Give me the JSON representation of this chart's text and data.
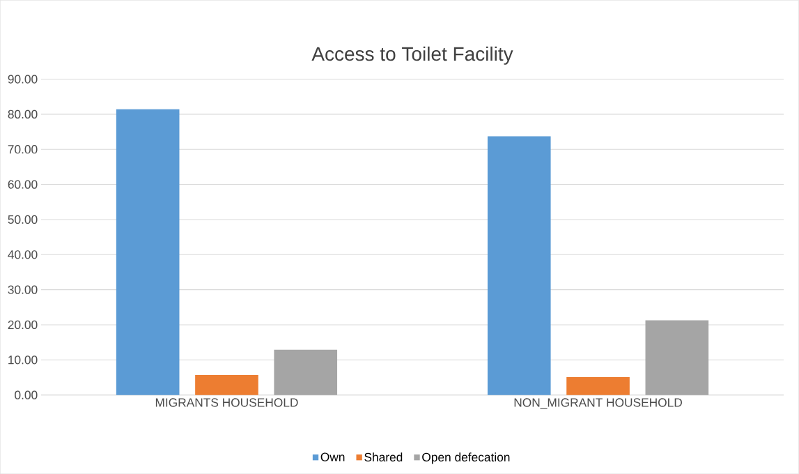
{
  "chart_data": {
    "type": "bar",
    "title": "Access to Toilet Facility",
    "categories": [
      "MIGRANTS HOUSEHOLD",
      "NON_MIGRANT HOUSEHOLD"
    ],
    "series": [
      {
        "name": "Own",
        "color": "#5b9bd5",
        "values": [
          81.4,
          73.7
        ]
      },
      {
        "name": "Shared",
        "color": "#ed7d31",
        "values": [
          5.7,
          5.1
        ]
      },
      {
        "name": "Open defecation",
        "color": "#a5a5a5",
        "values": [
          12.9,
          21.3
        ]
      }
    ],
    "ylim": [
      0,
      90
    ],
    "yticks": [
      {
        "value": 0,
        "label": "0.00"
      },
      {
        "value": 10,
        "label": "10.00"
      },
      {
        "value": 20,
        "label": "20.00"
      },
      {
        "value": 30,
        "label": "30.00"
      },
      {
        "value": 40,
        "label": "40.00"
      },
      {
        "value": 50,
        "label": "50.00"
      },
      {
        "value": 60,
        "label": "60.00"
      },
      {
        "value": 70,
        "label": "70.00"
      },
      {
        "value": 80,
        "label": "80.00"
      },
      {
        "value": 90,
        "label": "90.00"
      }
    ],
    "grid": "y",
    "legend": "bottom"
  }
}
